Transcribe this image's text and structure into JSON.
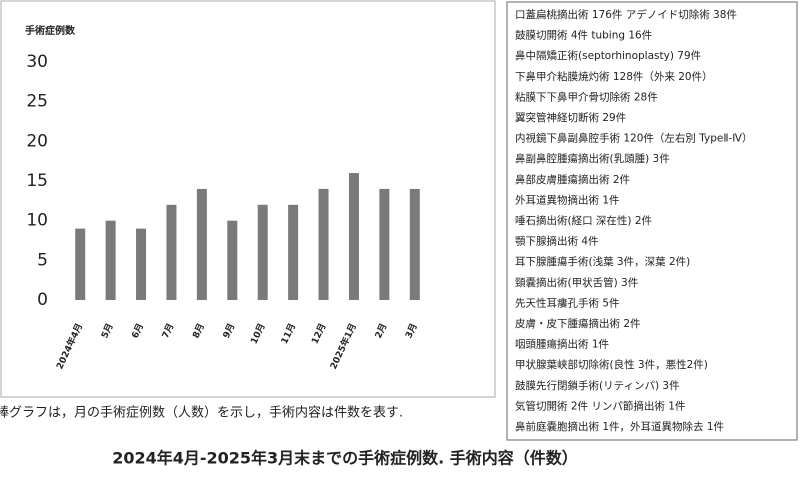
{
  "chart_data": {
    "type": "bar",
    "y_label": "手術症例数",
    "categories": [
      "2024年4月",
      "5月",
      "6月",
      "7月",
      "8月",
      "9月",
      "10月",
      "11月",
      "12月",
      "2025年1月",
      "2月",
      "3月"
    ],
    "values": [
      9,
      10,
      9,
      12,
      14,
      10,
      12,
      12,
      14,
      16,
      14,
      14
    ],
    "color": "#7a7a7a",
    "ylim": [
      0,
      30
    ],
    "yticks": [
      0,
      5,
      10,
      15,
      20,
      25,
      30
    ],
    "grid": false
  },
  "caption": "棒グラフは，月の手術症例数（人数）を示し，手術内容は件数を表す.",
  "figure_title": "2024年4月-2025年3月末までの手術症例数. 手術内容（件数）",
  "procedure_list": [
    "口蓋扁桃摘出術 176件 アデノイド切除術 38件",
    "鼓膜切開術 4件 tubing 16件",
    "鼻中隔矯正術(septorhinoplasty) 79件",
    "下鼻甲介粘膜焼灼術 128件（外来 20件）",
    "粘膜下下鼻甲介骨切除術 28件",
    "翼突管神経切断術 29件",
    "内視鏡下鼻副鼻腔手術 120件（左右別 TypeⅡ-Ⅳ）",
    "鼻副鼻腔腫瘍摘出術(乳頭腫) 3件",
    "鼻部皮膚腫瘍摘出術 2件",
    "外耳道異物摘出術 1件",
    "唾石摘出術(経口 深在性) 2件",
    "顎下腺摘出術 4件",
    "耳下腺腫瘍手術(浅葉 3件，深葉 2件)",
    "頸嚢摘出術(甲状舌管) 3件",
    "先天性耳瘻孔手術 5件",
    "皮膚・皮下腫瘍摘出術 2件",
    "咽頭腫瘍摘出術 1件",
    "甲状腺葉峡部切除術(良性 3件，悪性2件)",
    "鼓膜先行閉鎖手術(リティンパ) 3件",
    "気管切開術 2件 リンパ節摘出術 1件",
    "鼻前庭嚢胞摘出術 1件，外耳道異物除去 1件"
  ]
}
